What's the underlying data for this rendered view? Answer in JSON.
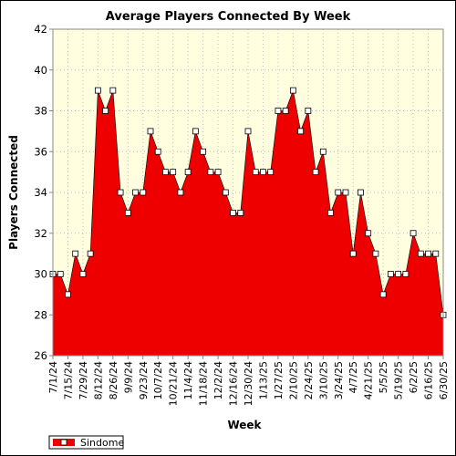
{
  "chart_data": {
    "type": "area",
    "title": "Average Players Connected By Week",
    "xlabel": "Week",
    "ylabel": "Players Connected",
    "ylim": [
      26,
      42
    ],
    "yticks": [
      26,
      28,
      30,
      32,
      34,
      36,
      38,
      40,
      42
    ],
    "grid": true,
    "legend_position": "bottom-left",
    "x_tick_labels": [
      "7/1/24",
      "7/15/24",
      "7/29/24",
      "8/12/24",
      "8/26/24",
      "9/9/24",
      "9/23/24",
      "10/7/24",
      "10/21/24",
      "11/4/24",
      "11/18/24",
      "12/2/24",
      "12/16/24",
      "12/30/24",
      "1/13/25",
      "1/27/25",
      "2/10/25",
      "2/24/25",
      "3/10/25",
      "3/24/25",
      "4/7/25",
      "4/21/25",
      "5/5/25",
      "5/19/25",
      "6/2/25",
      "6/16/25",
      "6/30/25"
    ],
    "series": [
      {
        "name": "Sindome",
        "color": "#ee0000",
        "x": [
          "7/1/24",
          "7/8/24",
          "7/15/24",
          "7/22/24",
          "7/29/24",
          "8/5/24",
          "8/12/24",
          "8/19/24",
          "8/26/24",
          "9/2/24",
          "9/9/24",
          "9/16/24",
          "9/23/24",
          "9/30/24",
          "10/7/24",
          "10/14/24",
          "10/21/24",
          "10/28/24",
          "11/4/24",
          "11/11/24",
          "11/18/24",
          "11/25/24",
          "12/2/24",
          "12/9/24",
          "12/16/24",
          "12/23/24",
          "12/30/24",
          "1/6/25",
          "1/13/25",
          "1/20/25",
          "1/27/25",
          "2/3/25",
          "2/10/25",
          "2/17/25",
          "2/24/25",
          "3/3/25",
          "3/10/25",
          "3/17/25",
          "3/24/25",
          "3/31/25",
          "4/7/25",
          "4/14/25",
          "4/21/25",
          "4/28/25",
          "5/5/25",
          "5/12/25",
          "5/19/25",
          "5/26/25",
          "6/2/25",
          "6/9/25",
          "6/16/25",
          "6/23/25",
          "6/30/25"
        ],
        "values": [
          30,
          30,
          29,
          31,
          30,
          31,
          39,
          38,
          39,
          34,
          33,
          34,
          34,
          37,
          36,
          35,
          35,
          34,
          35,
          37,
          36,
          35,
          35,
          34,
          33,
          33,
          37,
          35,
          35,
          35,
          38,
          38,
          39,
          37,
          38,
          35,
          36,
          33,
          34,
          34,
          31,
          34,
          32,
          31,
          29,
          30,
          30,
          30,
          32,
          31,
          31,
          31,
          28
        ]
      }
    ]
  },
  "colors": {
    "plot_bg": "#ffffe0",
    "area_fill": "#ee0000",
    "grid": "#bdbdbd"
  }
}
